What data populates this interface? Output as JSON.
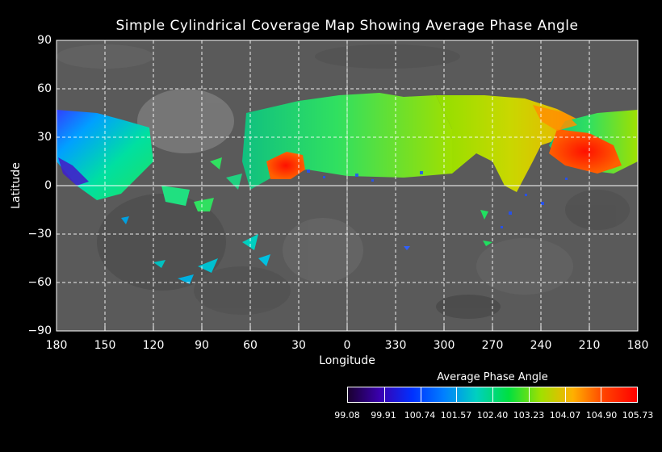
{
  "title": "Simple Cylindrical Coverage Map Showing Average Phase Angle",
  "xlabel": "Longitude",
  "ylabel": "Latitude",
  "x_ticks": [
    "180",
    "150",
    "120",
    "90",
    "60",
    "30",
    "0",
    "330",
    "300",
    "270",
    "240",
    "210",
    "180"
  ],
  "y_ticks": [
    "90",
    "60",
    "30",
    "0",
    "−30",
    "−60",
    "−90"
  ],
  "grid": "dashed white",
  "colorbar": {
    "title": "Average Phase Angle",
    "tick_labels": [
      "99.08",
      "99.91",
      "100.74",
      "101.57",
      "102.40",
      "103.23",
      "104.07",
      "104.90",
      "105.73"
    ],
    "colors": [
      "#1a0030",
      "#3a00b0",
      "#0030ff",
      "#0080ff",
      "#00d0c0",
      "#00e040",
      "#a0e000",
      "#ffb000",
      "#ff4000",
      "#ff0000"
    ]
  },
  "chart_data": {
    "type": "heatmap",
    "title": "Simple Cylindrical Coverage Map Showing Average Phase Angle",
    "xlabel": "Longitude",
    "ylabel": "Latitude",
    "xlim": [
      180,
      -180
    ],
    "ylim": [
      -90,
      90
    ],
    "value_range": [
      99.08,
      105.73
    ],
    "projection": "simple cylindrical",
    "coverage_regions": [
      {
        "description_lon": [
          180,
          125
        ],
        "lat": [
          0,
          48
        ],
        "approx_value": 102.4
      },
      {
        "description_lon": [
          140,
          160
        ],
        "lat": [
          15,
          5
        ],
        "approx_value": 99.5
      },
      {
        "description_lon": [
          60,
          -120
        ],
        "lat": [
          10,
          55
        ],
        "approx_value": 103.5
      },
      {
        "description_lon": [
          -60,
          -120
        ],
        "lat": [
          20,
          55
        ],
        "approx_value": 104.3
      },
      {
        "description_lon": [
          -140,
          -170
        ],
        "lat": [
          12,
          30
        ],
        "approx_value": 105.5
      },
      {
        "description_lon": [
          30,
          45
        ],
        "lat": [
          5,
          20
        ],
        "approx_value": 105.3
      }
    ]
  }
}
